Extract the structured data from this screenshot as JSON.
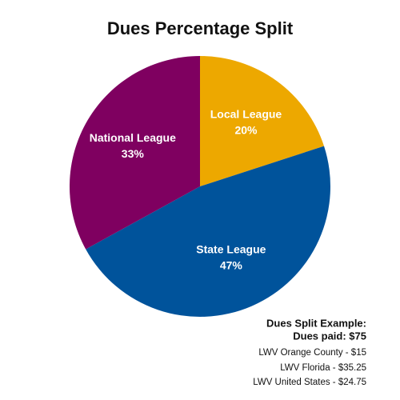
{
  "chart_data": {
    "type": "pie",
    "title": "Dues Percentage Split",
    "categories": [
      "Local League",
      "State League",
      "National League"
    ],
    "values": [
      20,
      47,
      33
    ],
    "value_labels": [
      "20%",
      "47%",
      "33%"
    ],
    "colors": [
      "#eda800",
      "#00539b",
      "#7f0060"
    ],
    "annotations": [
      "Dues Split Example:",
      "Dues paid: $75",
      "LWV Orange County - $15",
      "LWV Florida -  $35.25",
      "LWV United States - $24.75"
    ]
  }
}
